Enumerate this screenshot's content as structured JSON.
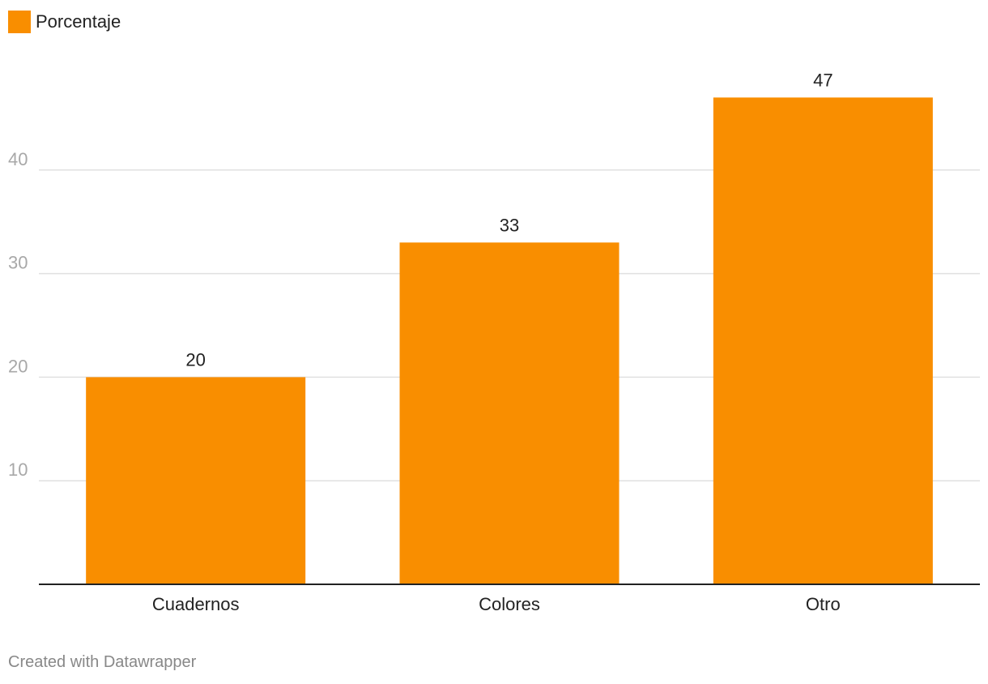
{
  "legend": {
    "label": "Porcentaje"
  },
  "footer": {
    "credit": "Created with Datawrapper"
  },
  "colors": {
    "bar": "#f98e00",
    "grid": "#e0e0e0",
    "baseline": "#222222",
    "tick_text": "#a8a8a8",
    "category_text": "#222222",
    "value_text": "#222222"
  },
  "chart_data": {
    "type": "bar",
    "categories": [
      "Cuadernos",
      "Colores",
      "Otro"
    ],
    "series": [
      {
        "name": "Porcentaje",
        "values": [
          20,
          33,
          47
        ]
      }
    ],
    "data_labels": [
      "20",
      "33",
      "47"
    ],
    "yticks": [
      10,
      20,
      30,
      40
    ],
    "ylim": [
      0,
      50
    ],
    "grid": true,
    "legend_position": "top-left",
    "title": "",
    "xlabel": "",
    "ylabel": ""
  }
}
